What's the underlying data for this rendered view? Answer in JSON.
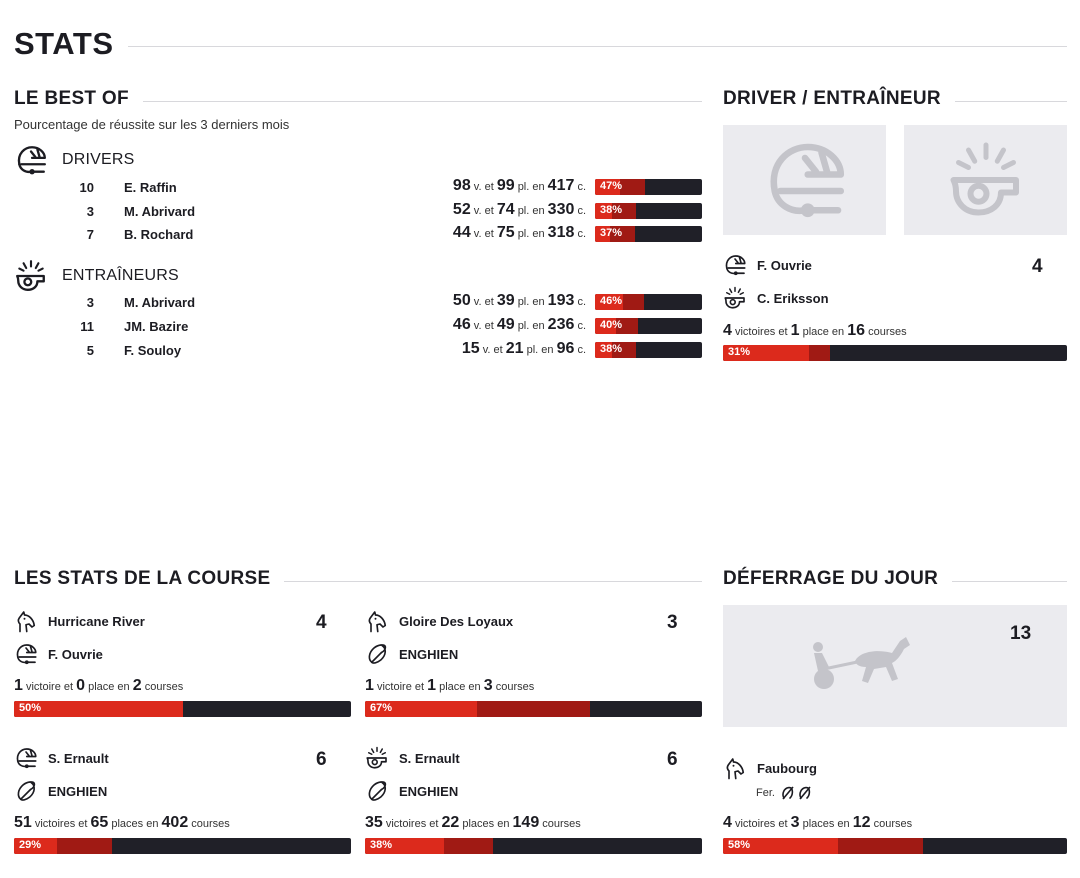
{
  "page_title": "STATS",
  "best_of": {
    "title": "LE BEST OF",
    "subtitle": "Pourcentage de réussite sur les 3 derniers mois",
    "drivers_label": "DRIVERS",
    "trainers_label": "ENTRAÎNEURS",
    "drivers": [
      {
        "num": "10",
        "name": "E. Raffin",
        "v": "98",
        "pl": "99",
        "c": "417",
        "pct": "47%",
        "win": 0.235,
        "place": 0.47
      },
      {
        "num": "3",
        "name": "M. Abrivard",
        "v": "52",
        "pl": "74",
        "c": "330",
        "pct": "38%",
        "win": 0.158,
        "place": 0.38
      },
      {
        "num": "7",
        "name": "B. Rochard",
        "v": "44",
        "pl": "75",
        "c": "318",
        "pct": "37%",
        "win": 0.138,
        "place": 0.37
      }
    ],
    "trainers": [
      {
        "num": "3",
        "name": "M. Abrivard",
        "v": "50",
        "pl": "39",
        "c": "193",
        "pct": "46%",
        "win": 0.259,
        "place": 0.46
      },
      {
        "num": "11",
        "name": "JM. Bazire",
        "v": "46",
        "pl": "49",
        "c": "236",
        "pct": "40%",
        "win": 0.195,
        "place": 0.4
      },
      {
        "num": "5",
        "name": "F. Souloy",
        "v": "15",
        "pl": "21",
        "c": "96",
        "pct": "38%",
        "win": 0.156,
        "place": 0.38
      }
    ],
    "units": {
      "v": "v. et",
      "pl": "pl. en",
      "c": "c."
    }
  },
  "driver_trainer": {
    "title": "DRIVER / ENTRAÎNEUR",
    "driver": "F. Ouvrie",
    "trainer": "C. Eriksson",
    "number": "4",
    "wins": "4",
    "wins_label": "victoires et",
    "places": "1",
    "places_label": "place en",
    "races": "16",
    "races_label": "courses",
    "pct": "31%",
    "win": 0.25,
    "place": 0.31
  },
  "race_stats": {
    "title": "LES STATS DE LA COURSE",
    "cards": [
      {
        "icon1": "horse-head-icon",
        "line1": "Hurricane River",
        "icon2": "helmet-icon",
        "line2": "F. Ouvrie",
        "number": "4",
        "wins": "1",
        "wins_label": "victoire et",
        "places": "0",
        "places_label": "place en",
        "races": "2",
        "races_label": "courses",
        "pct": "50%",
        "win": 0.5,
        "place": 0.5
      },
      {
        "icon1": "horse-head-icon",
        "line1": "Gloire Des Loyaux",
        "icon2": "horseshoe-icon",
        "line2": "ENGHIEN",
        "number": "3",
        "wins": "1",
        "wins_label": "victoire et",
        "places": "1",
        "places_label": "place en",
        "races": "3",
        "races_label": "courses",
        "pct": "67%",
        "win": 0.333,
        "place": 0.667
      },
      {
        "icon1": "helmet-icon",
        "line1": "S. Ernault",
        "icon2": "horseshoe-icon",
        "line2": "ENGHIEN",
        "number": "6",
        "wins": "51",
        "wins_label": "victoires et",
        "places": "65",
        "places_label": "places en",
        "races": "402",
        "races_label": "courses",
        "pct": "29%",
        "win": 0.127,
        "place": 0.29
      },
      {
        "icon1": "whistle-icon",
        "line1": "S. Ernault",
        "icon2": "horseshoe-icon",
        "line2": "ENGHIEN",
        "number": "6",
        "wins": "35",
        "wins_label": "victoires et",
        "places": "22",
        "places_label": "places en",
        "races": "149",
        "races_label": "courses",
        "pct": "38%",
        "win": 0.235,
        "place": 0.38
      }
    ]
  },
  "deferrage": {
    "title": "DÉFERRAGE DU JOUR",
    "number": "13",
    "horse": "Faubourg",
    "fer_label": "Fer.",
    "wins": "4",
    "wins_label": "victoires et",
    "places": "3",
    "places_label": "places en",
    "races": "12",
    "races_label": "courses",
    "pct": "58%",
    "win": 0.333,
    "place": 0.58
  },
  "colors": {
    "red": "#dc2a1c",
    "dark_red": "#a01a14",
    "bar_bg": "#202028",
    "photo_bg": "#ebebef"
  }
}
